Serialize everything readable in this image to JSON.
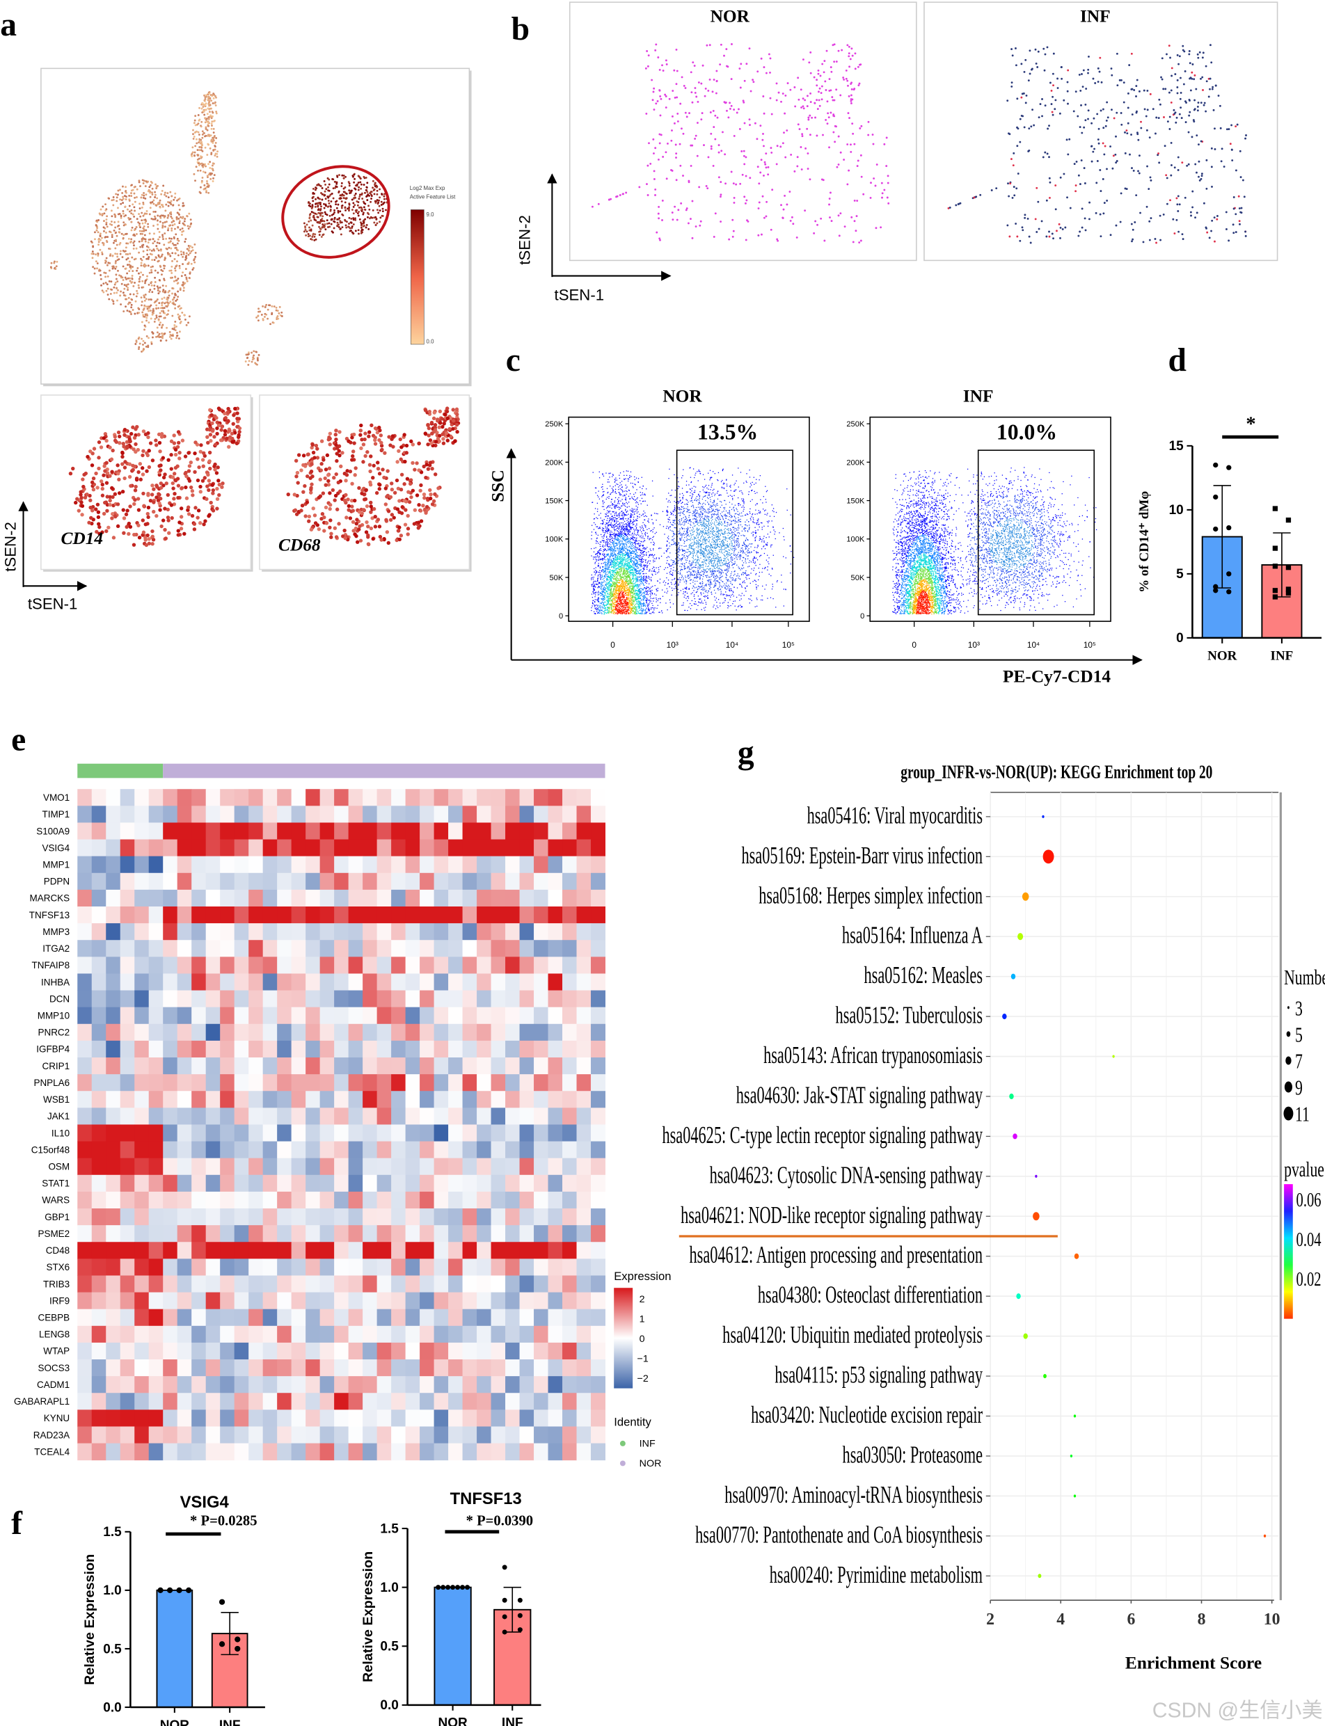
{
  "panel_labels": {
    "a": "a",
    "b": "b",
    "c": "c",
    "d": "d",
    "e": "e",
    "f": "f",
    "g": "g"
  },
  "panel_a": {
    "colorbar_title_line1": "Log2 Max Exp",
    "colorbar_title_line2": "Active Feature List",
    "colorbar_max": "9.0",
    "colorbar_min": "0.0",
    "subplot_genes": [
      "CD14",
      "CD68"
    ],
    "x_axis": "tSEN-1",
    "y_axis": "tSEN-2",
    "colors": {
      "low": "#fdd49e",
      "high": "#7f0000",
      "circle": "#c0141b"
    }
  },
  "panel_b": {
    "groups": [
      "NOR",
      "INF"
    ],
    "x_axis": "tSEN-1",
    "y_axis": "tSEN-2",
    "colors": {
      "NOR": "#e040e0",
      "INF": "#2b3a7a",
      "INF_accent": "#e0304a"
    }
  },
  "panel_c": {
    "groups": [
      "NOR",
      "INF"
    ],
    "gate_percent": [
      "13.5%",
      "10.0%"
    ],
    "y_axis": "SSC",
    "x_axis": "PE-Cy7-CD14",
    "y_ticks": [
      "0",
      "50K",
      "100K",
      "150K",
      "200K",
      "250K"
    ],
    "x_ticks": [
      "0",
      "10³",
      "10⁴",
      "10⁵"
    ]
  },
  "panel_e": {
    "legend_title": "Expression",
    "legend_ticks": [
      "2",
      "1",
      "0",
      "−1",
      "−2"
    ],
    "identity_title": "Identity",
    "identity": [
      {
        "label": "INF",
        "color": "#7dc97a"
      },
      {
        "label": "NOR",
        "color": "#c0aed8"
      }
    ],
    "colors": {
      "low": "#3b63a8",
      "mid": "#ffffff",
      "high": "#d7191c"
    }
  },
  "chart_data": [
    {
      "id": "d",
      "type": "bar",
      "categories": [
        "NOR",
        "INF"
      ],
      "values": [
        7.9,
        5.7
      ],
      "error_sd": [
        4.0,
        2.5
      ],
      "points": [
        [
          13.5,
          13.3,
          11.0,
          8.6,
          8.5,
          5.0,
          4.0,
          3.6,
          3.7
        ],
        [
          10.1,
          9.2,
          7.0,
          5.5,
          5.6,
          3.8,
          3.7,
          3.5,
          3.2
        ]
      ],
      "ylabel": "% of CD14⁺ dMφ",
      "ylim": [
        0,
        15
      ],
      "y_ticks": [
        "0",
        "5",
        "10",
        "15"
      ],
      "significance": "*",
      "colors": [
        "#55a0fa",
        "#fd7f7f"
      ]
    },
    {
      "id": "f-vsig4",
      "type": "bar",
      "title": "VSIG4",
      "categories": [
        "NOR",
        "INF"
      ],
      "values": [
        1.0,
        0.63
      ],
      "error_sd": [
        0,
        0.18
      ],
      "points": [
        [
          1.0,
          1.0,
          1.0,
          1.0
        ],
        [
          0.9,
          0.58,
          0.54,
          0.5
        ]
      ],
      "ylabel": "Relative Expression",
      "ylim": [
        0,
        1.5
      ],
      "y_ticks": [
        "0.0",
        "0.5",
        "1.0",
        "1.5"
      ],
      "significance": "* P=0.0285",
      "colors": [
        "#55a0fa",
        "#fd7f7f"
      ]
    },
    {
      "id": "f-tnfsf13",
      "type": "bar",
      "title": "TNFSF13",
      "categories": [
        "NOR",
        "INF"
      ],
      "values": [
        1.0,
        0.81
      ],
      "error_sd": [
        0,
        0.19
      ],
      "points": [
        [
          1.0,
          1.0,
          1.0,
          1.0,
          1.0,
          1.0,
          1.0
        ],
        [
          1.17,
          0.89,
          0.89,
          0.76,
          0.75,
          0.64,
          0.62
        ]
      ],
      "ylabel": "Relative Expression",
      "ylim": [
        0,
        1.5
      ],
      "y_ticks": [
        "0.0",
        "0.5",
        "1.0",
        "1.5"
      ],
      "significance": "* P=0.0390",
      "colors": [
        "#55a0fa",
        "#fd7f7f"
      ]
    },
    {
      "id": "e",
      "type": "heatmap",
      "genes": [
        "VMO1",
        "TIMP1",
        "S100A9",
        "VSIG4",
        "MMP1",
        "PDPN",
        "MARCKS",
        "TNFSF13",
        "MMP3",
        "ITGA2",
        "TNFAIP8",
        "INHBA",
        "DCN",
        "MMP10",
        "PNRC2",
        "IGFBP4",
        "CRIP1",
        "PNPLA6",
        "WSB1",
        "JAK1",
        "IL10",
        "C15orf48",
        "OSM",
        "STAT1",
        "WARS",
        "GBP1",
        "PSME2",
        "CD48",
        "STX6",
        "TRIB3",
        "IRF9",
        "CEBPB",
        "LENG8",
        "WTAP",
        "SOCS3",
        "CADM1",
        "GABARAPL1",
        "KYNU",
        "RAD23A",
        "TCEAL4"
      ],
      "column_groups": [
        {
          "label": "INF",
          "count": 6
        },
        {
          "label": "NOR",
          "count": 31
        }
      ],
      "color_range": [
        -2,
        2
      ]
    },
    {
      "id": "g",
      "type": "scatter",
      "title": "group_INFR-vs-NOR(UP): KEGG Enrichment top 20",
      "xlabel": "Enrichment Score",
      "xlim": [
        2,
        10
      ],
      "x_ticks": [
        "2",
        "4",
        "6",
        "8",
        "10"
      ],
      "size_legend_title": "Number",
      "size_legend": [
        3,
        5,
        7,
        9,
        11
      ],
      "color_legend_title": "pvalue",
      "color_legend_ticks": [
        "0.06",
        "0.04",
        "0.02"
      ],
      "terms": [
        {
          "label": "hsa05416: Viral myocarditis",
          "x": 3.5,
          "number": 3,
          "pvalue": 0.05
        },
        {
          "label": "hsa05169: Epstein-Barr virus infection",
          "x": 3.65,
          "number": 11,
          "pvalue": 0.001
        },
        {
          "label": "hsa05168: Herpes simplex infection",
          "x": 3.0,
          "number": 7,
          "pvalue": 0.008
        },
        {
          "label": "hsa05164: Influenza A",
          "x": 2.85,
          "number": 6,
          "pvalue": 0.017
        },
        {
          "label": "hsa05162: Measles",
          "x": 2.65,
          "number": 5,
          "pvalue": 0.043
        },
        {
          "label": "hsa05152: Tuberculosis",
          "x": 2.4,
          "number": 5,
          "pvalue": 0.05
        },
        {
          "label": "hsa05143: African trypanosomiasis",
          "x": 5.5,
          "number": 3,
          "pvalue": 0.017
        },
        {
          "label": "hsa04630: Jak-STAT signaling pathway",
          "x": 2.6,
          "number": 5,
          "pvalue": 0.033
        },
        {
          "label": "hsa04625: C-type lectin receptor signaling pathway",
          "x": 2.7,
          "number": 5,
          "pvalue": 0.063
        },
        {
          "label": "hsa04623: Cytosolic DNA-sensing pathway",
          "x": 3.3,
          "number": 3,
          "pvalue": 0.058
        },
        {
          "label": "hsa04621: NOD-like receptor signaling pathway",
          "x": 3.3,
          "number": 7,
          "pvalue": 0.004
        },
        {
          "label": "hsa04612: Antigen processing and presentation",
          "x": 4.45,
          "number": 5,
          "pvalue": 0.005
        },
        {
          "label": "hsa04380: Osteoclast differentiation",
          "x": 2.8,
          "number": 5,
          "pvalue": 0.036
        },
        {
          "label": "hsa04120: Ubiquitin mediated proteolysis",
          "x": 3.0,
          "number": 5,
          "pvalue": 0.018
        },
        {
          "label": "hsa04115: p53 signaling pathway",
          "x": 3.55,
          "number": 4,
          "pvalue": 0.024
        },
        {
          "label": "hsa03420: Nucleotide excision repair",
          "x": 4.4,
          "number": 3,
          "pvalue": 0.026
        },
        {
          "label": "hsa03050: Proteasome",
          "x": 4.3,
          "number": 3,
          "pvalue": 0.028
        },
        {
          "label": "hsa00970: Aminoacyl-tRNA biosynthesis",
          "x": 4.4,
          "number": 3,
          "pvalue": 0.026
        },
        {
          "label": "hsa00770: Pantothenate and CoA biosynthesis",
          "x": 9.8,
          "number": 3,
          "pvalue": 0.004
        },
        {
          "label": "hsa00240: Pyrimidine metabolism",
          "x": 3.4,
          "number": 4,
          "pvalue": 0.018
        }
      ],
      "separator_after_index": 10,
      "separator_color": "#e07020"
    }
  ],
  "watermark": "CSDN @生信小美"
}
